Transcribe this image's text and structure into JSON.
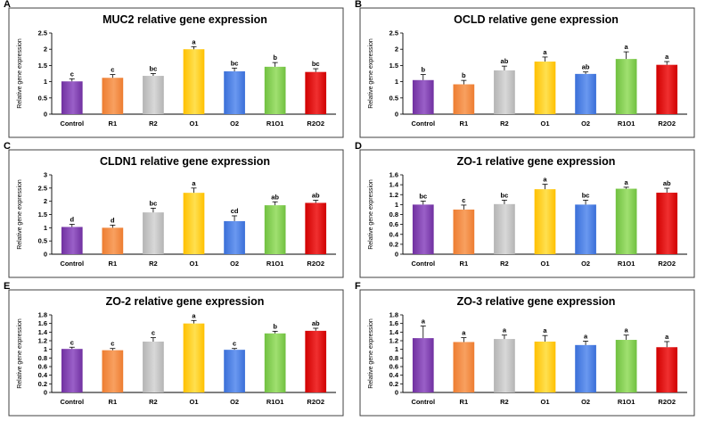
{
  "figure": {
    "panel_count": 6
  },
  "chart_data": [
    {
      "type": "bar",
      "panel_label": "A",
      "title": "MUC2 relative gene expression",
      "ylabel": "Relative gene expression",
      "xlabel": "",
      "categories": [
        "Control",
        "R1",
        "R2",
        "O1",
        "O2",
        "R1O1",
        "R2O2"
      ],
      "values": [
        1.01,
        1.12,
        1.18,
        2.0,
        1.32,
        1.46,
        1.3
      ],
      "errors": [
        0.08,
        0.1,
        0.07,
        0.08,
        0.1,
        0.13,
        0.1
      ],
      "labels": [
        "c",
        "c",
        "bc",
        "a",
        "bc",
        "b",
        "bc"
      ],
      "ylim": [
        0,
        2.5
      ],
      "ticks": [
        "0",
        "0.5",
        "1",
        "1.5",
        "2",
        "2.5"
      ]
    },
    {
      "type": "bar",
      "panel_label": "B",
      "title": "OCLD relative gene expression",
      "ylabel": "Relative gene expression",
      "xlabel": "",
      "categories": [
        "Control",
        "R1",
        "R2",
        "O1",
        "O2",
        "R1O1",
        "R2O2"
      ],
      "values": [
        1.05,
        0.92,
        1.35,
        1.62,
        1.24,
        1.7,
        1.52
      ],
      "errors": [
        0.17,
        0.12,
        0.13,
        0.14,
        0.06,
        0.22,
        0.1
      ],
      "labels": [
        "b",
        "b",
        "ab",
        "a",
        "ab",
        "a",
        "a"
      ],
      "ylim": [
        0,
        2.5
      ],
      "ticks": [
        "0",
        "0.5",
        "1",
        "1.5",
        "2",
        "2.5"
      ]
    },
    {
      "type": "bar",
      "panel_label": "C",
      "title": "CLDN1 relative gene expression",
      "ylabel": "Relative gene expression",
      "xlabel": "",
      "categories": [
        "Control",
        "R1",
        "R2",
        "O1",
        "O2",
        "R1O1",
        "R2O2"
      ],
      "values": [
        1.03,
        1.0,
        1.58,
        2.32,
        1.25,
        1.85,
        1.94
      ],
      "errors": [
        0.1,
        0.1,
        0.16,
        0.18,
        0.2,
        0.13,
        0.1
      ],
      "labels": [
        "d",
        "d",
        "bc",
        "a",
        "cd",
        "ab",
        "ab"
      ],
      "ylim": [
        0,
        3
      ],
      "ticks": [
        "0",
        "0.5",
        "1",
        "1.5",
        "2",
        "2.5",
        "3"
      ]
    },
    {
      "type": "bar",
      "panel_label": "D",
      "title": "ZO-1 relative gene expression",
      "ylabel": "Relative gene expression",
      "xlabel": "",
      "categories": [
        "Control",
        "R1",
        "R2",
        "O1",
        "O2",
        "R1O1",
        "R2O2"
      ],
      "values": [
        1.0,
        0.9,
        1.01,
        1.31,
        1.0,
        1.32,
        1.24
      ],
      "errors": [
        0.07,
        0.09,
        0.08,
        0.1,
        0.09,
        0.03,
        0.09
      ],
      "labels": [
        "bc",
        "c",
        "bc",
        "a",
        "bc",
        "a",
        "ab"
      ],
      "ylim": [
        0,
        1.6
      ],
      "ticks": [
        "0",
        "0.2",
        "0.4",
        "0.6",
        "0.8",
        "1",
        "1.2",
        "1.4",
        "1.6"
      ]
    },
    {
      "type": "bar",
      "panel_label": "E",
      "title": "ZO-2 relative gene expression",
      "ylabel": "Relative gene expression",
      "xlabel": "",
      "categories": [
        "Control",
        "R1",
        "R2",
        "O1",
        "O2",
        "R1O1",
        "R2O2"
      ],
      "values": [
        1.01,
        0.98,
        1.18,
        1.6,
        0.99,
        1.37,
        1.43
      ],
      "errors": [
        0.04,
        0.04,
        0.09,
        0.07,
        0.03,
        0.05,
        0.06
      ],
      "labels": [
        "c",
        "c",
        "c",
        "a",
        "c",
        "b",
        "ab"
      ],
      "ylim": [
        0,
        1.8
      ],
      "ticks": [
        "0",
        "0.2",
        "0.4",
        "0.6",
        "0.8",
        "1",
        "1.2",
        "1.4",
        "1.6",
        "1.8"
      ]
    },
    {
      "type": "bar",
      "panel_label": "F",
      "title": "ZO-3 relative gene expression",
      "ylabel": "Relative gene expression",
      "xlabel": "",
      "categories": [
        "Control",
        "R1",
        "R2",
        "O1",
        "O2",
        "R1O1",
        "R2O2"
      ],
      "values": [
        1.26,
        1.17,
        1.24,
        1.18,
        1.1,
        1.22,
        1.05
      ],
      "errors": [
        0.28,
        0.1,
        0.09,
        0.14,
        0.09,
        0.11,
        0.13
      ],
      "labels": [
        "a",
        "a",
        "a",
        "a",
        "a",
        "a",
        "a"
      ],
      "ylim": [
        0,
        1.8
      ],
      "ticks": [
        "0",
        "0.2",
        "0.4",
        "0.6",
        "0.8",
        "1",
        "1.2",
        "1.4",
        "1.6",
        "1.8"
      ]
    }
  ],
  "colors": {
    "bars": [
      "#7030a0",
      "#ed7d31",
      "#b4b4b4",
      "#ffc000",
      "#3a6fd8",
      "#70c040",
      "#d00000"
    ],
    "bar_highlights": [
      "#9a60c8",
      "#f8a060",
      "#d8d8d8",
      "#ffe050",
      "#6a98f0",
      "#a0e070",
      "#f03030"
    ],
    "frame": "#404040",
    "text": "#000000"
  }
}
